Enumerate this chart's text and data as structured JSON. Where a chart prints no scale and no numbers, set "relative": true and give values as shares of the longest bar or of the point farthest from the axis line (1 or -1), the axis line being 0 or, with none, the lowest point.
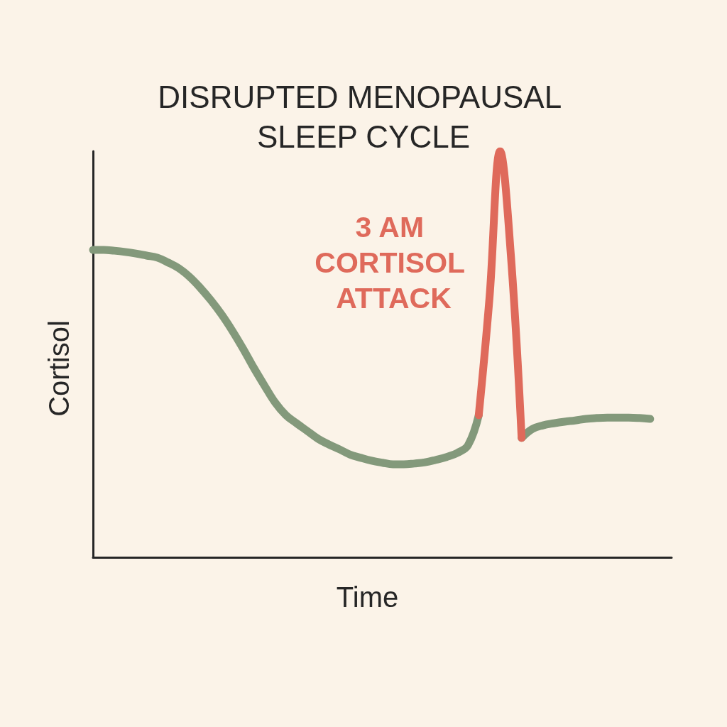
{
  "chart_data": {
    "type": "line",
    "title": "DISRUPTED MENOPAUSAL SLEEP CYCLE",
    "xlabel": "Time",
    "ylabel": "Cortisol",
    "relative": true,
    "annotations": [
      "3 AM CORTISOL ATTACK"
    ],
    "categories": [
      null,
      null,
      null,
      null,
      null,
      null,
      null,
      null,
      null,
      null,
      null,
      null,
      null,
      null,
      null,
      null,
      null,
      null,
      null,
      null,
      null,
      null,
      null,
      null,
      null,
      null,
      null,
      null,
      null,
      null,
      null,
      null,
      null,
      null,
      null,
      null,
      null,
      null,
      null,
      null,
      null,
      null,
      null,
      null,
      null,
      null,
      null,
      null,
      null,
      null,
      null,
      null,
      null,
      null,
      null
    ],
    "series": [
      {
        "color": "#83997b",
        "values": [
          0.757,
          0.757,
          0.755,
          0.752,
          0.748,
          0.743,
          0.738,
          0.726,
          0.712,
          0.691,
          0.664,
          0.633,
          0.598,
          0.558,
          0.514,
          0.467,
          0.423,
          0.381,
          0.35,
          0.33,
          0.311,
          0.292,
          0.278,
          0.266,
          0.253,
          0.245,
          0.238,
          0.233,
          0.229,
          0.229,
          0.231,
          0.234,
          0.24,
          0.247,
          0.257,
          0.276,
          0.35,
          null,
          null,
          null,
          0.294,
          0.316,
          0.325,
          0.33,
          0.334,
          0.337,
          0.341,
          0.343,
          0.344,
          0.344,
          0.344,
          0.343,
          0.341,
          null,
          null
        ]
      },
      {
        "color": "#df6a5b",
        "values": [
          null,
          null,
          null,
          null,
          null,
          null,
          null,
          null,
          null,
          null,
          null,
          null,
          null,
          null,
          null,
          null,
          null,
          null,
          null,
          null,
          null,
          null,
          null,
          null,
          null,
          null,
          null,
          null,
          null,
          null,
          null,
          null,
          null,
          null,
          null,
          null,
          0.35,
          0.638,
          1,
          0.743,
          0.294,
          null,
          null,
          null,
          null,
          null,
          null,
          null,
          null,
          null,
          null,
          null,
          null,
          null,
          null
        ]
      }
    ]
  }
}
